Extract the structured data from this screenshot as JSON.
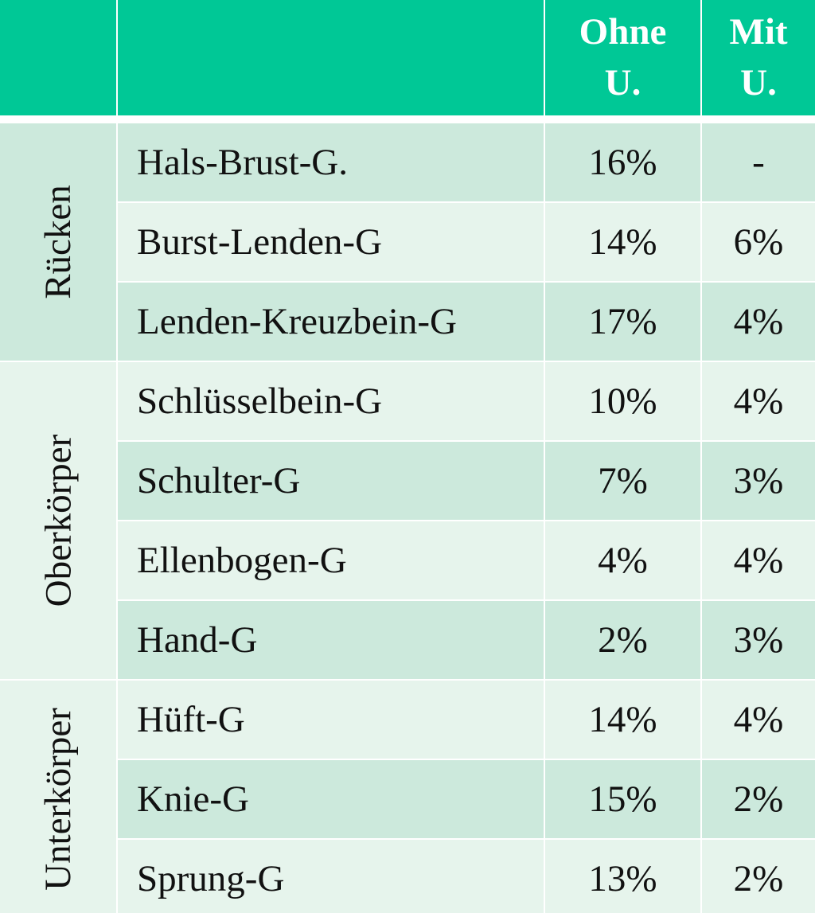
{
  "header": {
    "ohne": "Ohne U.",
    "mit": "Mit U."
  },
  "groups": [
    {
      "label": "Rücken",
      "rows": [
        {
          "name": "Hals-Brust-G.",
          "ohne": "16%",
          "mit": "-"
        },
        {
          "name": "Burst-Lenden-G",
          "ohne": "14%",
          "mit": "6%"
        },
        {
          "name": "Lenden-Kreuzbein-G",
          "ohne": "17%",
          "mit": "4%"
        }
      ]
    },
    {
      "label": "Oberkörper",
      "rows": [
        {
          "name": "Schlüsselbein-G",
          "ohne": "10%",
          "mit": "4%"
        },
        {
          "name": "Schulter-G",
          "ohne": "7%",
          "mit": "3%"
        },
        {
          "name": "Ellenbogen-G",
          "ohne": "4%",
          "mit": "4%"
        },
        {
          "name": "Hand-G",
          "ohne": "2%",
          "mit": "3%"
        }
      ]
    },
    {
      "label": "Unterkörper",
      "rows": [
        {
          "name": "Hüft-G",
          "ohne": "14%",
          "mit": "4%"
        },
        {
          "name": "Knie-G",
          "ohne": "15%",
          "mit": "2%"
        },
        {
          "name": "Sprung-G",
          "ohne": "13%",
          "mit": "2%"
        }
      ]
    }
  ]
}
